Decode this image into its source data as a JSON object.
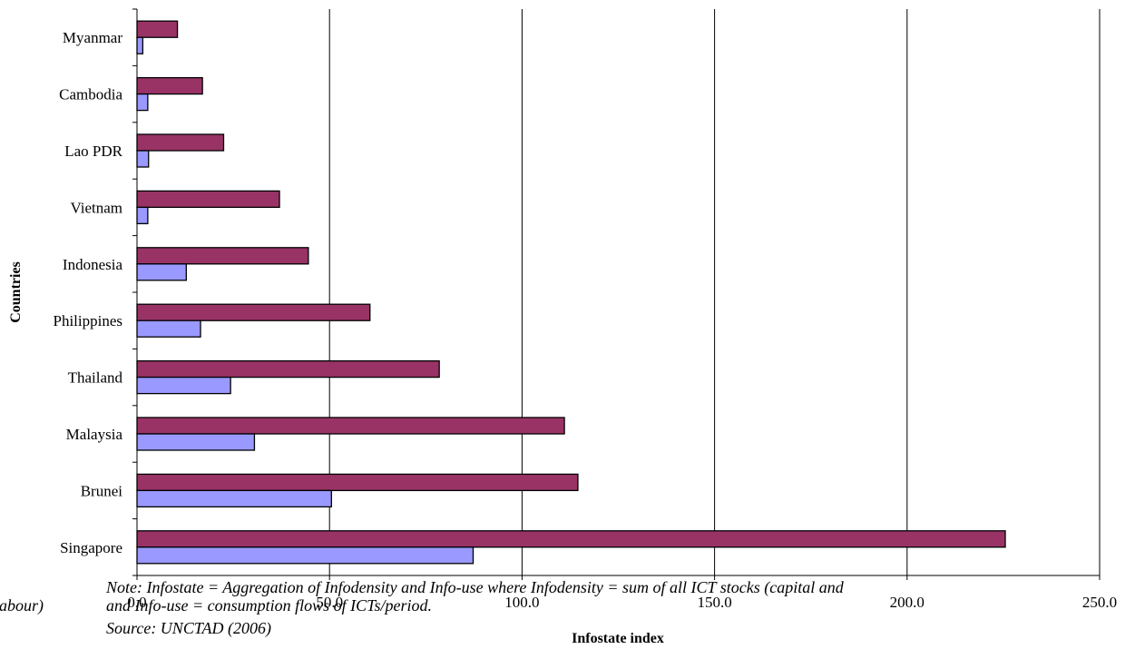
{
  "chart_data": {
    "type": "bar",
    "orientation": "horizontal",
    "xlabel": "Infostate index",
    "ylabel": "Countries",
    "xlim": [
      0,
      250
    ],
    "x_ticks": [
      "0.0",
      "50.0",
      "100.0",
      "150.0",
      "200.0",
      "250.0"
    ],
    "grid": "vertical",
    "categories": [
      "Myanmar",
      "Cambodia",
      "Lao PDR",
      "Vietnam",
      "Indonesia",
      "Philippines",
      "Thailand",
      "Malaysia",
      "Brunei",
      "Singapore"
    ],
    "series": [
      {
        "color": "#993366",
        "values": [
          10.5,
          17.0,
          22.5,
          37.0,
          44.5,
          60.5,
          78.5,
          111.0,
          114.5,
          225.5
        ]
      },
      {
        "color": "#9999ff",
        "values": [
          1.5,
          2.8,
          3.0,
          2.8,
          12.8,
          16.5,
          24.3,
          30.5,
          50.5,
          87.3
        ]
      }
    ]
  },
  "note": {
    "line1": "Note: Infostate = Aggregation of Infodensity and Info-use where Infodensity = sum of all ICT stocks (capital and",
    "line2_prefix": "labour)",
    "line2": "and Info-use = consumption flows of ICTs/period.",
    "source": "Source: UNCTAD (2006)"
  }
}
